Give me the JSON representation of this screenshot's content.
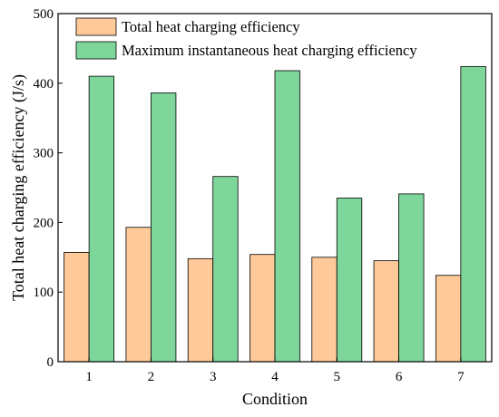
{
  "chart_data": {
    "type": "bar",
    "xlabel": "Condition",
    "ylabel": "Total heat charging efficiency (J/s)",
    "categories": [
      "1",
      "2",
      "3",
      "4",
      "5",
      "6",
      "7"
    ],
    "ylim": [
      0,
      500
    ],
    "yticks": [
      "0",
      "100",
      "200",
      "300",
      "400",
      "500"
    ],
    "grid": false,
    "legend_position": "top-left",
    "series": [
      {
        "name": "Total heat charging efficiency",
        "color": "#FFC999",
        "values": [
          157,
          193,
          148,
          154,
          150,
          145,
          124
        ]
      },
      {
        "name": "Maximum instantaneous heat charging efficiency",
        "color": "#7FD69B",
        "values": [
          410,
          386,
          266,
          418,
          235,
          241,
          424
        ]
      }
    ]
  }
}
